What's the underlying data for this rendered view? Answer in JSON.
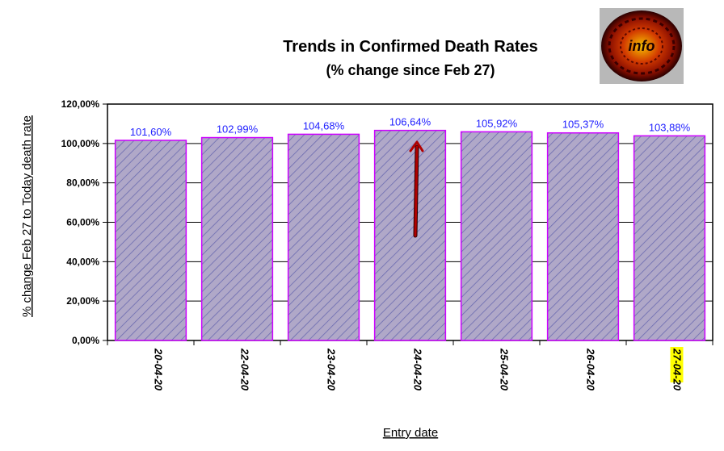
{
  "logo_text": "info",
  "chart_data": {
    "type": "bar",
    "title": "Trends in Confirmed Death Rates",
    "subtitle": "(% change since Feb 27)",
    "xlabel": "Entry date",
    "ylabel": "% change Feb 27 to Today death rate",
    "categories": [
      "20-04-20",
      "22-04-20",
      "23-04-20",
      "24-04-20",
      "25-04-20",
      "26-04-20",
      "27-04-20"
    ],
    "values": [
      101.6,
      102.99,
      104.68,
      106.64,
      105.92,
      105.37,
      103.88
    ],
    "data_labels": [
      "101,60%",
      "102,99%",
      "104,68%",
      "106,64%",
      "105,92%",
      "105,37%",
      "103,88%"
    ],
    "ylim": [
      0,
      120
    ],
    "y_ticks": [
      0,
      20,
      40,
      60,
      80,
      100,
      120
    ],
    "y_tick_labels": [
      "0,00%",
      "20,00%",
      "40,00%",
      "60,00%",
      "80,00%",
      "100,00%",
      "120,00%"
    ],
    "grid": true,
    "highlighted_category": "27-04-20",
    "annotation": "arrow pointing to the peak bar (24-04-20)",
    "colors": {
      "bar_fill": "#b0a8c8",
      "bar_hatch": "#6a6ab0",
      "bar_border": "#cc00ff",
      "data_label": "#1f1fff",
      "highlight": "#ffff00",
      "arrow": "#b00000"
    }
  }
}
